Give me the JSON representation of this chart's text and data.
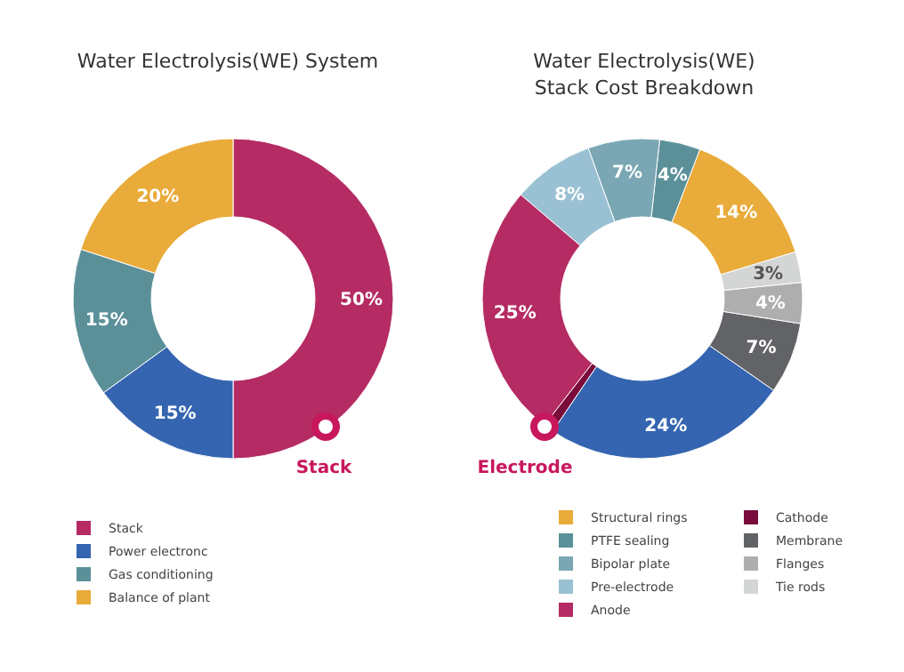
{
  "chart_data": [
    {
      "type": "donut",
      "title": "Water Electrolysis(WE) System",
      "categories": [
        "Stack",
        "Power electronc",
        "Gas conditioning",
        "Balance of plant"
      ],
      "values": [
        50,
        15,
        15,
        20
      ],
      "colors": [
        "#b52b63",
        "#3565b0",
        "#5b9099",
        "#e9ab3a"
      ],
      "value_labels": [
        "50%",
        "15%",
        "15%",
        "20%"
      ],
      "legend": "bottom left",
      "annotations": [
        "Stack"
      ]
    },
    {
      "type": "donut",
      "title": "Water Electrolysis(WE)\nStack Cost Breakdown",
      "categories": [
        "Structural rings",
        "PTFE sealing",
        "Bipolar plate",
        "Pre-electrode",
        "Anode",
        "Cathode",
        null,
        "Membrane",
        "Flanges",
        "Tie rods"
      ],
      "values": [
        14,
        4,
        7,
        8,
        25,
        1,
        24,
        7,
        4,
        3
      ],
      "colors": [
        "#e9ab3a",
        "#5b9099",
        "#7aa7b3",
        "#9ac1d3",
        "#b52b63",
        "#7a0c3c",
        "#3565b0",
        "#626366",
        "#aeaeae",
        "#d4d6d5"
      ],
      "value_labels": [
        "14%",
        "4%",
        "7%",
        "8%",
        "25%",
        null,
        "24%",
        "7%",
        "4%",
        "3%"
      ],
      "legend": "bottom",
      "annotations": [
        "Electrode"
      ]
    }
  ]
}
